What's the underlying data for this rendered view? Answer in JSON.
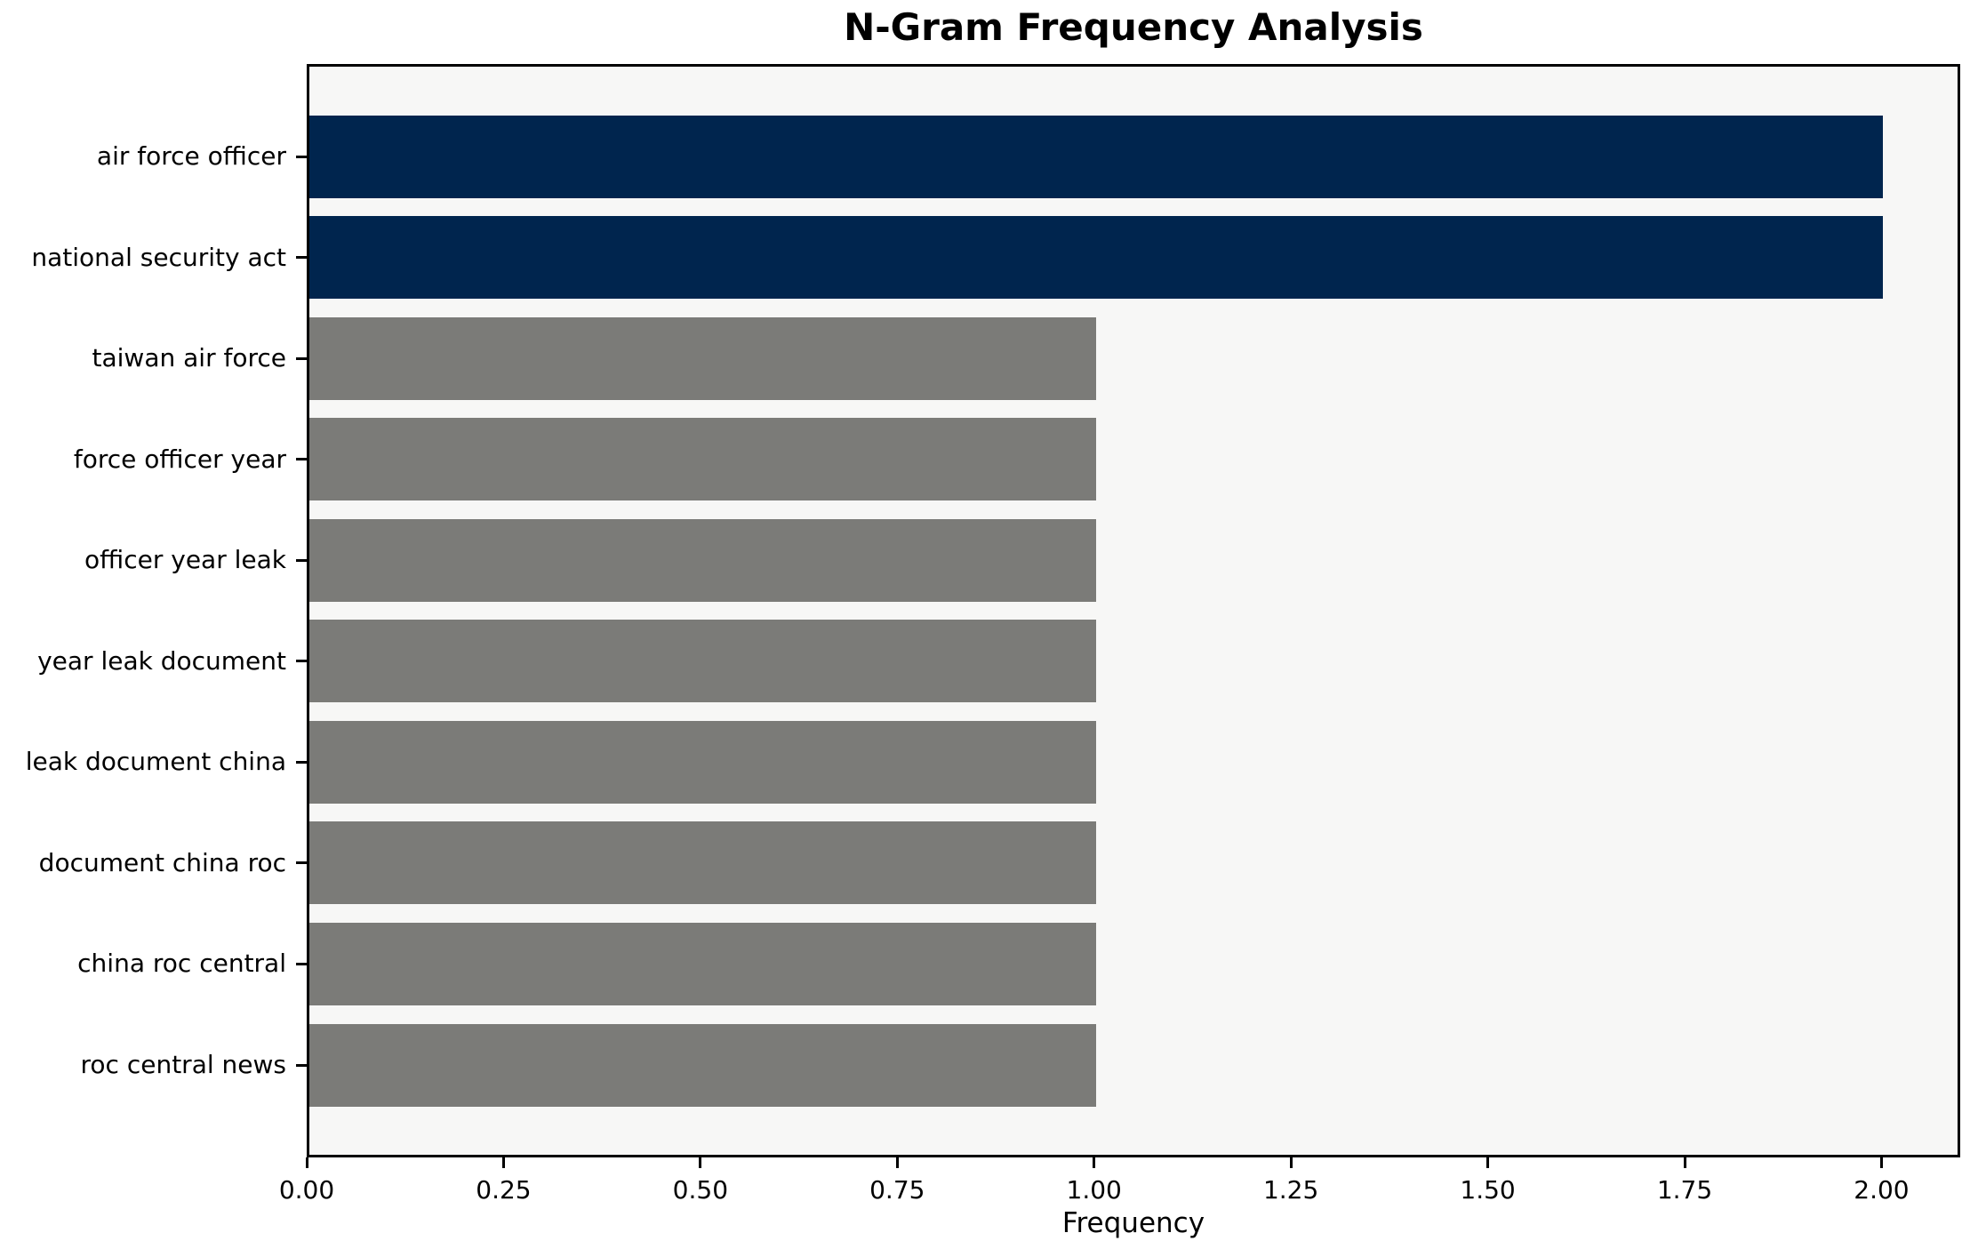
{
  "chart_data": {
    "type": "bar",
    "orientation": "horizontal",
    "title": "N-Gram Frequency Analysis",
    "xlabel": "Frequency",
    "ylabel": "",
    "categories": [
      "air force officer",
      "national security act",
      "taiwan air force",
      "force officer year",
      "officer year leak",
      "year leak document",
      "leak document china",
      "document china roc",
      "china roc central",
      "roc central news"
    ],
    "values": [
      2,
      2,
      1,
      1,
      1,
      1,
      1,
      1,
      1,
      1
    ],
    "bar_colors": [
      "#00254e",
      "#00254e",
      "#7b7b78",
      "#7b7b78",
      "#7b7b78",
      "#7b7b78",
      "#7b7b78",
      "#7b7b78",
      "#7b7b78",
      "#7b7b78"
    ],
    "highlight_color": "#00254e",
    "base_color": "#7b7b78",
    "xlim": [
      0,
      2.1
    ],
    "xticks": [
      0,
      0.25,
      0.5,
      0.75,
      1.0,
      1.25,
      1.5,
      1.75,
      2.0
    ],
    "xtick_labels": [
      "0.00",
      "0.25",
      "0.50",
      "0.75",
      "1.00",
      "1.25",
      "1.50",
      "1.75",
      "2.00"
    ],
    "grid": false,
    "legend_position": "none",
    "plot_background": "#f7f7f6",
    "spine_color": "#000000",
    "text_color": "#000000"
  }
}
